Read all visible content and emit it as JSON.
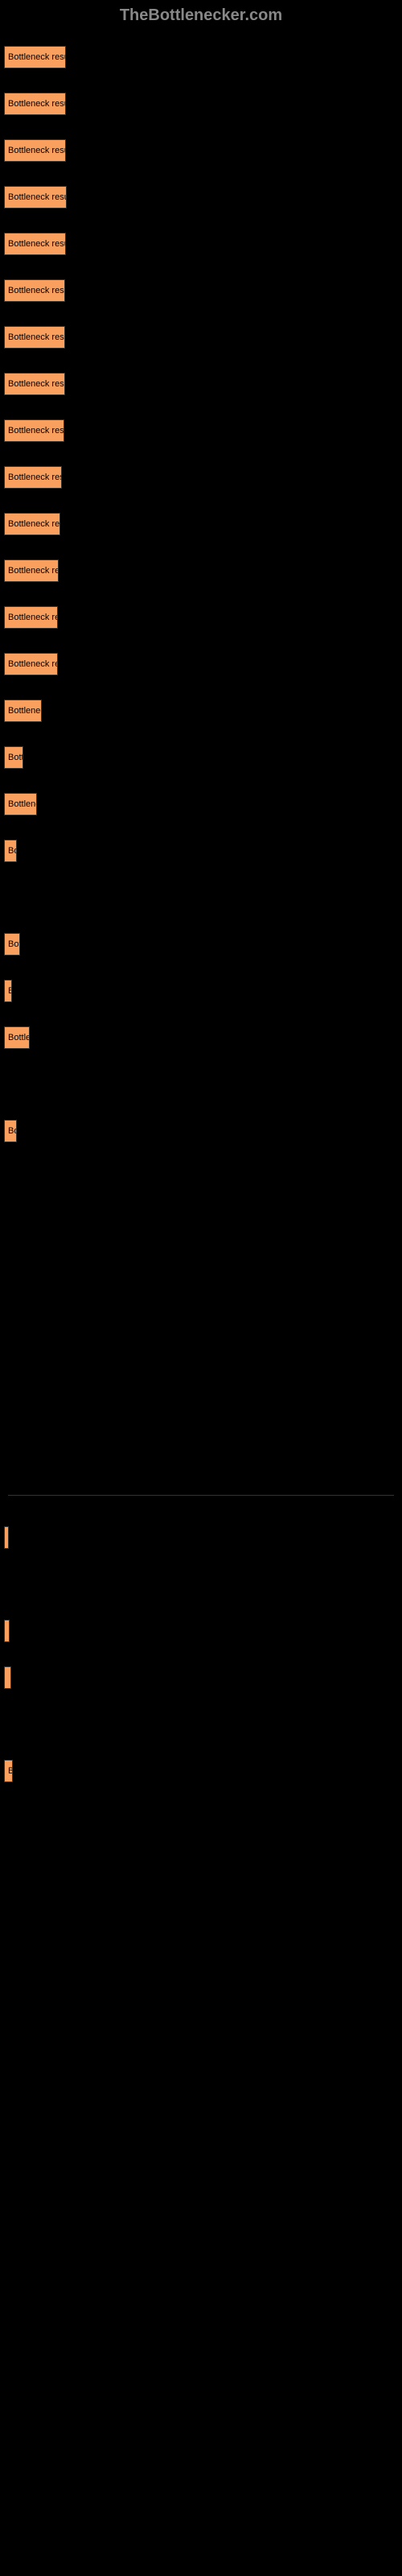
{
  "header": "TheBottlenecker.com",
  "bars": [
    {
      "label": "Bottleneck result",
      "width": 77
    },
    {
      "label": "Bottleneck result",
      "width": 77
    },
    {
      "label": "Bottleneck result",
      "width": 77
    },
    {
      "label": "Bottleneck result",
      "width": 78
    },
    {
      "label": "Bottleneck result",
      "width": 77
    },
    {
      "label": "Bottleneck result",
      "width": 76
    },
    {
      "label": "Bottleneck result",
      "width": 76
    },
    {
      "label": "Bottleneck result",
      "width": 76
    },
    {
      "label": "Bottleneck result",
      "width": 75
    },
    {
      "label": "Bottleneck resu",
      "width": 72
    },
    {
      "label": "Bottleneck resu",
      "width": 70
    },
    {
      "label": "Bottleneck res",
      "width": 68
    },
    {
      "label": "Bottleneck res",
      "width": 67
    },
    {
      "label": "Bottleneck res",
      "width": 67
    },
    {
      "label": "Bottlenec",
      "width": 47
    },
    {
      "label": "Bott",
      "width": 24
    },
    {
      "label": "Bottlene",
      "width": 41
    },
    {
      "label": "Bo",
      "width": 16
    },
    {
      "label": "",
      "width": 0
    },
    {
      "label": "Bot",
      "width": 20
    },
    {
      "label": "B",
      "width": 10
    },
    {
      "label": "Bottle",
      "width": 32
    },
    {
      "label": "",
      "width": 0
    },
    {
      "label": "Bo",
      "width": 16
    },
    {
      "label": "",
      "width": 0
    },
    {
      "label": "",
      "width": 0
    },
    {
      "label": "",
      "width": 0
    },
    {
      "label": "",
      "width": 0
    },
    {
      "label": "",
      "width": 0
    },
    {
      "label": "",
      "width": 0
    },
    {
      "label": "",
      "width": 0
    }
  ],
  "bars2": [
    {
      "label": "",
      "width": 3
    },
    {
      "label": "",
      "width": 0
    },
    {
      "label": "",
      "width": 7
    },
    {
      "label": "",
      "width": 9
    },
    {
      "label": "",
      "width": 0
    },
    {
      "label": "B",
      "width": 11
    },
    {
      "label": "",
      "width": 0
    }
  ],
  "bar_color": "#f9a05f",
  "background_color": "#000000",
  "text_color": "#000000",
  "header_color": "#888888"
}
